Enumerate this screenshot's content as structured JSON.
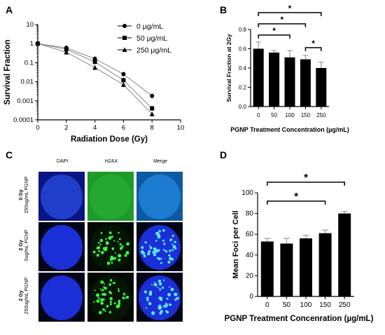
{
  "panels": {
    "a": "A",
    "b": "B",
    "c": "C",
    "d": "D"
  },
  "chart_data": [
    {
      "type": "line",
      "panel": "A",
      "xlabel": "Radiation Dose (Gy)",
      "ylabel": "Survival Fraction",
      "xlim": [
        0,
        10
      ],
      "xticks": [
        "0",
        "2",
        "4",
        "6",
        "8",
        "10"
      ],
      "yscale": "log",
      "ylim": [
        0.0001,
        10
      ],
      "yticks": [
        "10",
        "1",
        "0.1",
        "0.01",
        "0.001",
        "0.0001"
      ],
      "legend_position": "top-right",
      "series": [
        {
          "name": "0 µg/mL",
          "marker": "circle",
          "x": [
            0,
            2,
            4,
            6,
            8
          ],
          "y": [
            1,
            0.6,
            0.16,
            0.025,
            0.0018
          ]
        },
        {
          "name": "50 µg/mL",
          "marker": "square",
          "x": [
            0,
            2,
            4,
            6,
            8
          ],
          "y": [
            1,
            0.5,
            0.11,
            0.012,
            0.0004
          ]
        },
        {
          "name": "250 µg/mL",
          "marker": "triangle",
          "x": [
            0,
            2,
            4,
            6,
            8
          ],
          "y": [
            1,
            0.35,
            0.055,
            0.007,
            0.0002
          ]
        }
      ]
    },
    {
      "type": "bar",
      "panel": "B",
      "xlabel": "PGNP Treatment Concentration (µg/mL)",
      "ylabel": "Survival Fraction at 2Gy",
      "categories": [
        "0",
        "50",
        "100",
        "150",
        "250"
      ],
      "values": [
        0.6,
        0.56,
        0.51,
        0.49,
        0.4
      ],
      "errors": [
        0.07,
        0.02,
        0.07,
        0.04,
        0.06
      ],
      "ylim": [
        0,
        0.8
      ],
      "yticks": [
        "0.0",
        "0.2",
        "0.4",
        "0.6",
        "0.8"
      ],
      "significance": [
        {
          "from": 0,
          "to": 4,
          "label": "*"
        },
        {
          "from": 0,
          "to": 3,
          "label": "*"
        },
        {
          "from": 0,
          "to": 2,
          "label": "*"
        },
        {
          "from": 3,
          "to": 4,
          "label": "*"
        }
      ]
    },
    {
      "type": "bar",
      "panel": "D",
      "xlabel": "PGNP Treatment Concenration (µg/mL)",
      "ylabel": "Mean Foci per Cell",
      "categories": [
        "0",
        "50",
        "100",
        "150",
        "250"
      ],
      "values": [
        53,
        51,
        56,
        61,
        80
      ],
      "errors": [
        3,
        5,
        3,
        3,
        2
      ],
      "ylim": [
        0,
        100
      ],
      "yticks": [
        "0",
        "20",
        "40",
        "60",
        "80",
        "100"
      ],
      "significance": [
        {
          "from": 0,
          "to": 4,
          "label": "*"
        },
        {
          "from": 0,
          "to": 3,
          "label": "*"
        }
      ]
    }
  ],
  "micrographs": {
    "columns": [
      "DAPI",
      "H2AX",
      "Merge"
    ],
    "rows": [
      {
        "label_line1": "0 Gy",
        "label_line2": "250ug/mL PGNP"
      },
      {
        "label_line1": "2 Gy",
        "label_line2": "0ug/mL PGNP"
      },
      {
        "label_line1": "2 Gy",
        "label_line2": "250ug/mL PGNP"
      }
    ],
    "colors": {
      "dapi": "#1a2fd6",
      "h2ax_bg": "#1e9a2a",
      "foci": "#39ff3a",
      "merge_foci": "#5fe8ff"
    }
  }
}
